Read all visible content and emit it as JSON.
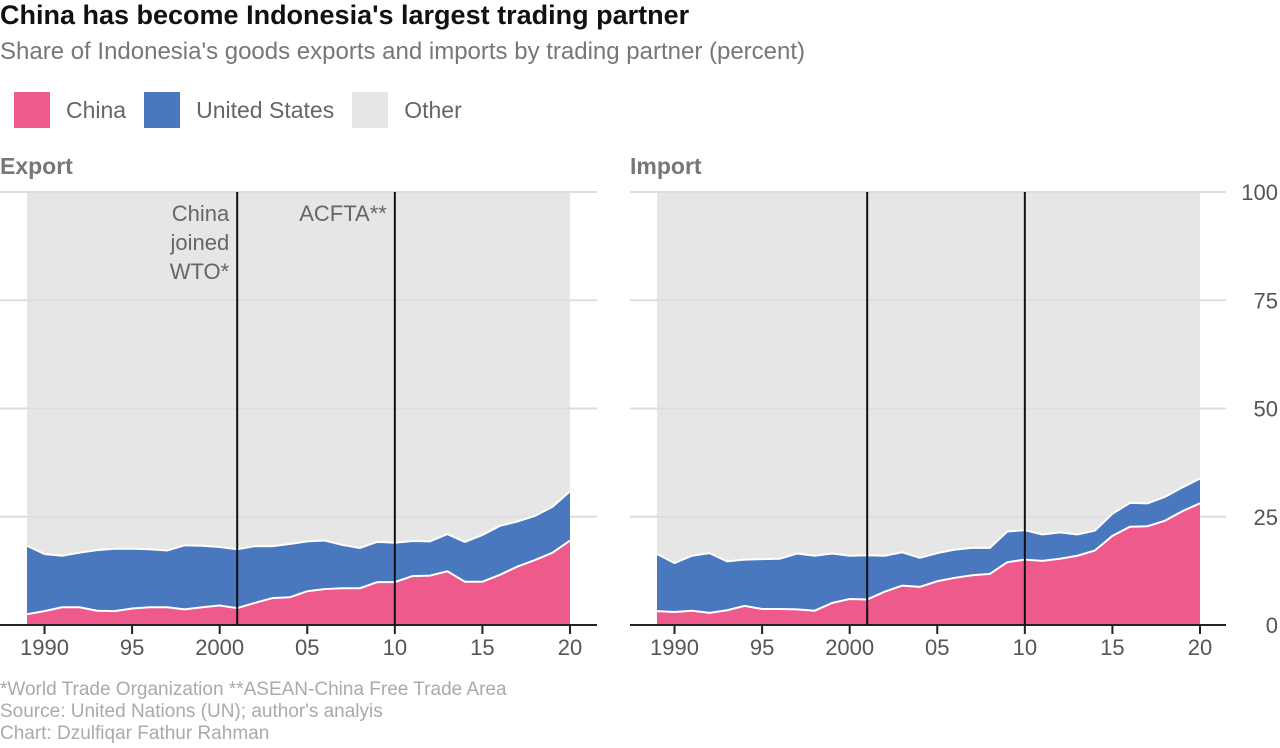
{
  "title": "China has become Indonesia's largest trading partner",
  "subtitle": "Share of Indonesia's goods exports and imports by trading partner (percent)",
  "legend": [
    {
      "label": "China",
      "color": "#ef5a8c"
    },
    {
      "label": "United States",
      "color": "#4a78bf"
    },
    {
      "label": "Other",
      "color": "#e6e6e6"
    }
  ],
  "panels": {
    "export_title": "Export",
    "import_title": "Import"
  },
  "annotations": [
    {
      "label_lines": [
        "China",
        "joined",
        "WTO*"
      ],
      "x": 2001
    },
    {
      "label_lines": [
        "ACFTA**"
      ],
      "x": 2010
    }
  ],
  "footer": {
    "note": "*World Trade Organization **ASEAN-China Free Trade Area",
    "source": "Source: United Nations (UN); author's analyis",
    "credit": "Chart: Dzulfiqar Fathur Rahman"
  },
  "chart_data": [
    {
      "type": "area",
      "stacked": true,
      "panel": "Export",
      "x": [
        1989,
        1990,
        1991,
        1992,
        1993,
        1994,
        1995,
        1996,
        1997,
        1998,
        1999,
        2000,
        2001,
        2002,
        2003,
        2004,
        2005,
        2006,
        2007,
        2008,
        2009,
        2010,
        2011,
        2012,
        2013,
        2014,
        2015,
        2016,
        2017,
        2018,
        2019,
        2020
      ],
      "series": [
        {
          "name": "China",
          "values": [
            2.5,
            3.2,
            4.1,
            4.1,
            3.3,
            3.2,
            3.8,
            4.1,
            4.1,
            3.6,
            4.1,
            4.5,
            3.9,
            5.1,
            6.2,
            6.4,
            7.8,
            8.3,
            8.5,
            8.5,
            9.9,
            9.9,
            11.3,
            11.4,
            12.4,
            10.0,
            10.0,
            11.6,
            13.5,
            15.0,
            16.7,
            19.5
          ]
        },
        {
          "name": "United States",
          "values": [
            15.8,
            13.2,
            11.9,
            12.6,
            14.0,
            14.4,
            13.8,
            13.4,
            13.1,
            14.8,
            14.2,
            13.5,
            13.6,
            13.1,
            12.0,
            12.3,
            11.5,
            11.2,
            10.0,
            9.3,
            9.3,
            9.1,
            8.1,
            7.9,
            8.6,
            9.2,
            10.8,
            11.3,
            10.4,
            10.2,
            10.6,
            11.4
          ]
        }
      ],
      "xticks": [
        "1990",
        "95",
        "2000",
        "05",
        "10",
        "15",
        "20"
      ],
      "xlim": [
        1989,
        2020
      ],
      "ylim": [
        0,
        100
      ],
      "grid": true
    },
    {
      "type": "area",
      "stacked": true,
      "panel": "Import",
      "x": [
        1989,
        1990,
        1991,
        1992,
        1993,
        1994,
        1995,
        1996,
        1997,
        1998,
        1999,
        2000,
        2001,
        2002,
        2003,
        2004,
        2005,
        2006,
        2007,
        2008,
        2009,
        2010,
        2011,
        2012,
        2013,
        2014,
        2015,
        2016,
        2017,
        2018,
        2019,
        2020
      ],
      "series": [
        {
          "name": "China",
          "values": [
            3.2,
            3.0,
            3.3,
            2.8,
            3.4,
            4.4,
            3.7,
            3.7,
            3.6,
            3.3,
            5.1,
            6.0,
            5.9,
            7.7,
            9.1,
            8.8,
            10.1,
            10.9,
            11.5,
            11.8,
            14.5,
            15.1,
            14.8,
            15.3,
            16.0,
            17.2,
            20.6,
            22.7,
            22.8,
            24.1,
            26.3,
            28.1
          ]
        },
        {
          "name": "United States",
          "values": [
            13.2,
            11.3,
            12.7,
            13.8,
            11.3,
            10.7,
            11.5,
            11.6,
            12.9,
            12.7,
            11.4,
            10.0,
            10.2,
            8.3,
            7.7,
            6.7,
            6.5,
            6.5,
            6.3,
            6.0,
            7.1,
            6.8,
            6.1,
            6.1,
            4.9,
            4.6,
            5.1,
            5.5,
            5.3,
            5.5,
            5.5,
            5.7
          ]
        }
      ],
      "xticks": [
        "1990",
        "95",
        "2000",
        "05",
        "10",
        "15",
        "20"
      ],
      "yticks": [
        "0",
        "25",
        "50",
        "75",
        "100"
      ],
      "xlim": [
        1989,
        2020
      ],
      "ylim": [
        0,
        100
      ],
      "yaxis_position": "right",
      "grid": true
    }
  ]
}
